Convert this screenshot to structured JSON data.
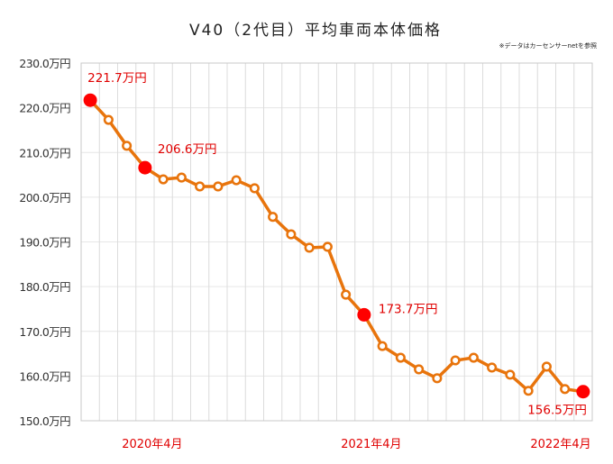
{
  "chart_data": {
    "type": "line",
    "title": "V40（2代目）平均車両本体価格",
    "note": "※データはカーセンサーnetを参照",
    "xlabel": "",
    "ylabel": "",
    "ylim": [
      150,
      230
    ],
    "y_ticks": [
      150,
      160,
      170,
      180,
      190,
      200,
      210,
      220,
      230
    ],
    "y_tick_labels": [
      "150.0万円",
      "160.0万円",
      "170.0万円",
      "180.0万円",
      "190.0万円",
      "200.0万円",
      "210.0万円",
      "220.0万円",
      "230.0万円"
    ],
    "x_tick_labels": [
      {
        "index": 3,
        "label": "2020年4月"
      },
      {
        "index": 15,
        "label": "2021年4月"
      },
      {
        "index": 27,
        "label": "2022年4月"
      }
    ],
    "grid": true,
    "legend": "none",
    "series": [
      {
        "name": "平均車両本体価格",
        "color": "#e8740c",
        "values": [
          221.7,
          217.3,
          211.5,
          206.6,
          204.0,
          204.4,
          202.4,
          202.4,
          203.8,
          202.0,
          195.6,
          191.7,
          188.7,
          188.9,
          178.2,
          173.7,
          166.7,
          164.1,
          161.5,
          159.5,
          163.5,
          164.1,
          161.9,
          160.3,
          156.7,
          162.1,
          157.1,
          156.5
        ]
      }
    ],
    "highlights": [
      {
        "index": 0,
        "label": "221.7万円"
      },
      {
        "index": 3,
        "label": "206.6万円"
      },
      {
        "index": 15,
        "label": "173.7万円"
      },
      {
        "index": 27,
        "label": "156.5万円"
      }
    ],
    "highlight_color": "#ff0000",
    "label_color": "#e00000"
  }
}
